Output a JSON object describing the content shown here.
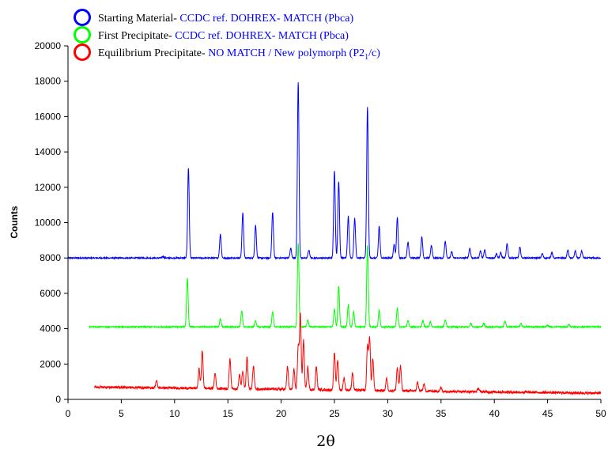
{
  "chart_data": {
    "type": "line",
    "xlabel": "2θ",
    "ylabel": "Counts",
    "xlim": [
      0,
      50
    ],
    "ylim": [
      0,
      20000
    ],
    "x_ticks": [
      "0",
      "5",
      "10",
      "15",
      "20",
      "25",
      "30",
      "35",
      "40",
      "45",
      "50"
    ],
    "y_ticks": [
      "0",
      "2000",
      "4000",
      "6000",
      "8000",
      "10000",
      "12000",
      "14000",
      "16000",
      "18000",
      "20000"
    ],
    "grid": false,
    "legend_position": "top-left",
    "legend": [
      {
        "label": "Starting Material-",
        "match": "CCDC ref. DOHREX- MATCH (Pbca)",
        "color": "#0000ff"
      },
      {
        "label": "First Precipitate-",
        "match": "CCDC ref. DOHREX- MATCH (Pbca)",
        "color": "#00ff00"
      },
      {
        "label": "Equilibrium Precipitate-",
        "match": "NO MATCH / New polymorph  (P2",
        "match_sub": "1",
        "match_end": "/c)",
        "color": "#ff0000"
      }
    ],
    "series": [
      {
        "name": "Starting Material",
        "color": "#0000ff",
        "x_range": [
          0,
          50
        ],
        "baseline": 8000,
        "noise": 35,
        "peaks": [
          [
            8.9,
            8080
          ],
          [
            11.3,
            13100
          ],
          [
            14.3,
            9350
          ],
          [
            16.4,
            10550
          ],
          [
            17.6,
            9850
          ],
          [
            19.2,
            10600
          ],
          [
            20.9,
            8550
          ],
          [
            21.6,
            17950
          ],
          [
            22.6,
            8450
          ],
          [
            25.0,
            12950
          ],
          [
            25.4,
            12350
          ],
          [
            26.3,
            10350
          ],
          [
            26.9,
            10250
          ],
          [
            28.1,
            16550
          ],
          [
            29.2,
            9800
          ],
          [
            30.6,
            8750
          ],
          [
            30.9,
            10300
          ],
          [
            31.9,
            8900
          ],
          [
            33.2,
            9200
          ],
          [
            34.1,
            8700
          ],
          [
            35.4,
            8950
          ],
          [
            36.0,
            8350
          ],
          [
            37.7,
            8550
          ],
          [
            38.7,
            8400
          ],
          [
            39.1,
            8450
          ],
          [
            40.2,
            8250
          ],
          [
            40.6,
            8300
          ],
          [
            41.2,
            8800
          ],
          [
            42.4,
            8600
          ],
          [
            44.5,
            8250
          ],
          [
            45.4,
            8300
          ],
          [
            46.9,
            8450
          ],
          [
            47.6,
            8400
          ],
          [
            48.2,
            8400
          ]
        ]
      },
      {
        "name": "First Precipitate",
        "color": "#00ff00",
        "x_range": [
          2,
          50
        ],
        "baseline": 4100,
        "noise": 35,
        "peaks": [
          [
            11.2,
            6850
          ],
          [
            14.3,
            4550
          ],
          [
            16.3,
            5000
          ],
          [
            17.6,
            4450
          ],
          [
            19.2,
            4950
          ],
          [
            21.6,
            8800
          ],
          [
            22.5,
            4500
          ],
          [
            25.0,
            5100
          ],
          [
            25.4,
            6400
          ],
          [
            26.3,
            5350
          ],
          [
            26.8,
            4950
          ],
          [
            28.1,
            8750
          ],
          [
            29.2,
            5050
          ],
          [
            30.9,
            5200
          ],
          [
            31.9,
            4450
          ],
          [
            33.3,
            4450
          ],
          [
            34.0,
            4400
          ],
          [
            35.4,
            4500
          ],
          [
            37.8,
            4300
          ],
          [
            39.0,
            4300
          ],
          [
            41.0,
            4450
          ],
          [
            42.5,
            4300
          ],
          [
            45.0,
            4200
          ],
          [
            47.0,
            4250
          ]
        ]
      },
      {
        "name": "Equilibrium Precipitate",
        "color": "#ff0000",
        "x_range": [
          2.5,
          50
        ],
        "baseline": 700,
        "baseline_end": 350,
        "noise": 70,
        "peaks": [
          [
            8.3,
            1100
          ],
          [
            12.3,
            1800
          ],
          [
            12.6,
            2800
          ],
          [
            13.8,
            1600
          ],
          [
            15.2,
            2400
          ],
          [
            16.1,
            1500
          ],
          [
            16.4,
            1700
          ],
          [
            16.8,
            2500
          ],
          [
            17.4,
            2000
          ],
          [
            20.6,
            2000
          ],
          [
            21.2,
            1800
          ],
          [
            21.6,
            3100
          ],
          [
            21.8,
            5000
          ],
          [
            22.1,
            3500
          ],
          [
            22.5,
            2000
          ],
          [
            23.3,
            2000
          ],
          [
            25.0,
            2800
          ],
          [
            25.3,
            2400
          ],
          [
            25.9,
            1400
          ],
          [
            26.7,
            1700
          ],
          [
            28.1,
            3200
          ],
          [
            28.3,
            3700
          ],
          [
            28.6,
            2500
          ],
          [
            29.9,
            1400
          ],
          [
            30.9,
            2000
          ],
          [
            31.2,
            2100
          ],
          [
            32.8,
            1200
          ],
          [
            33.4,
            1100
          ],
          [
            35.0,
            900
          ],
          [
            38.5,
            900
          ],
          [
            46.8,
            700
          ]
        ]
      }
    ]
  }
}
